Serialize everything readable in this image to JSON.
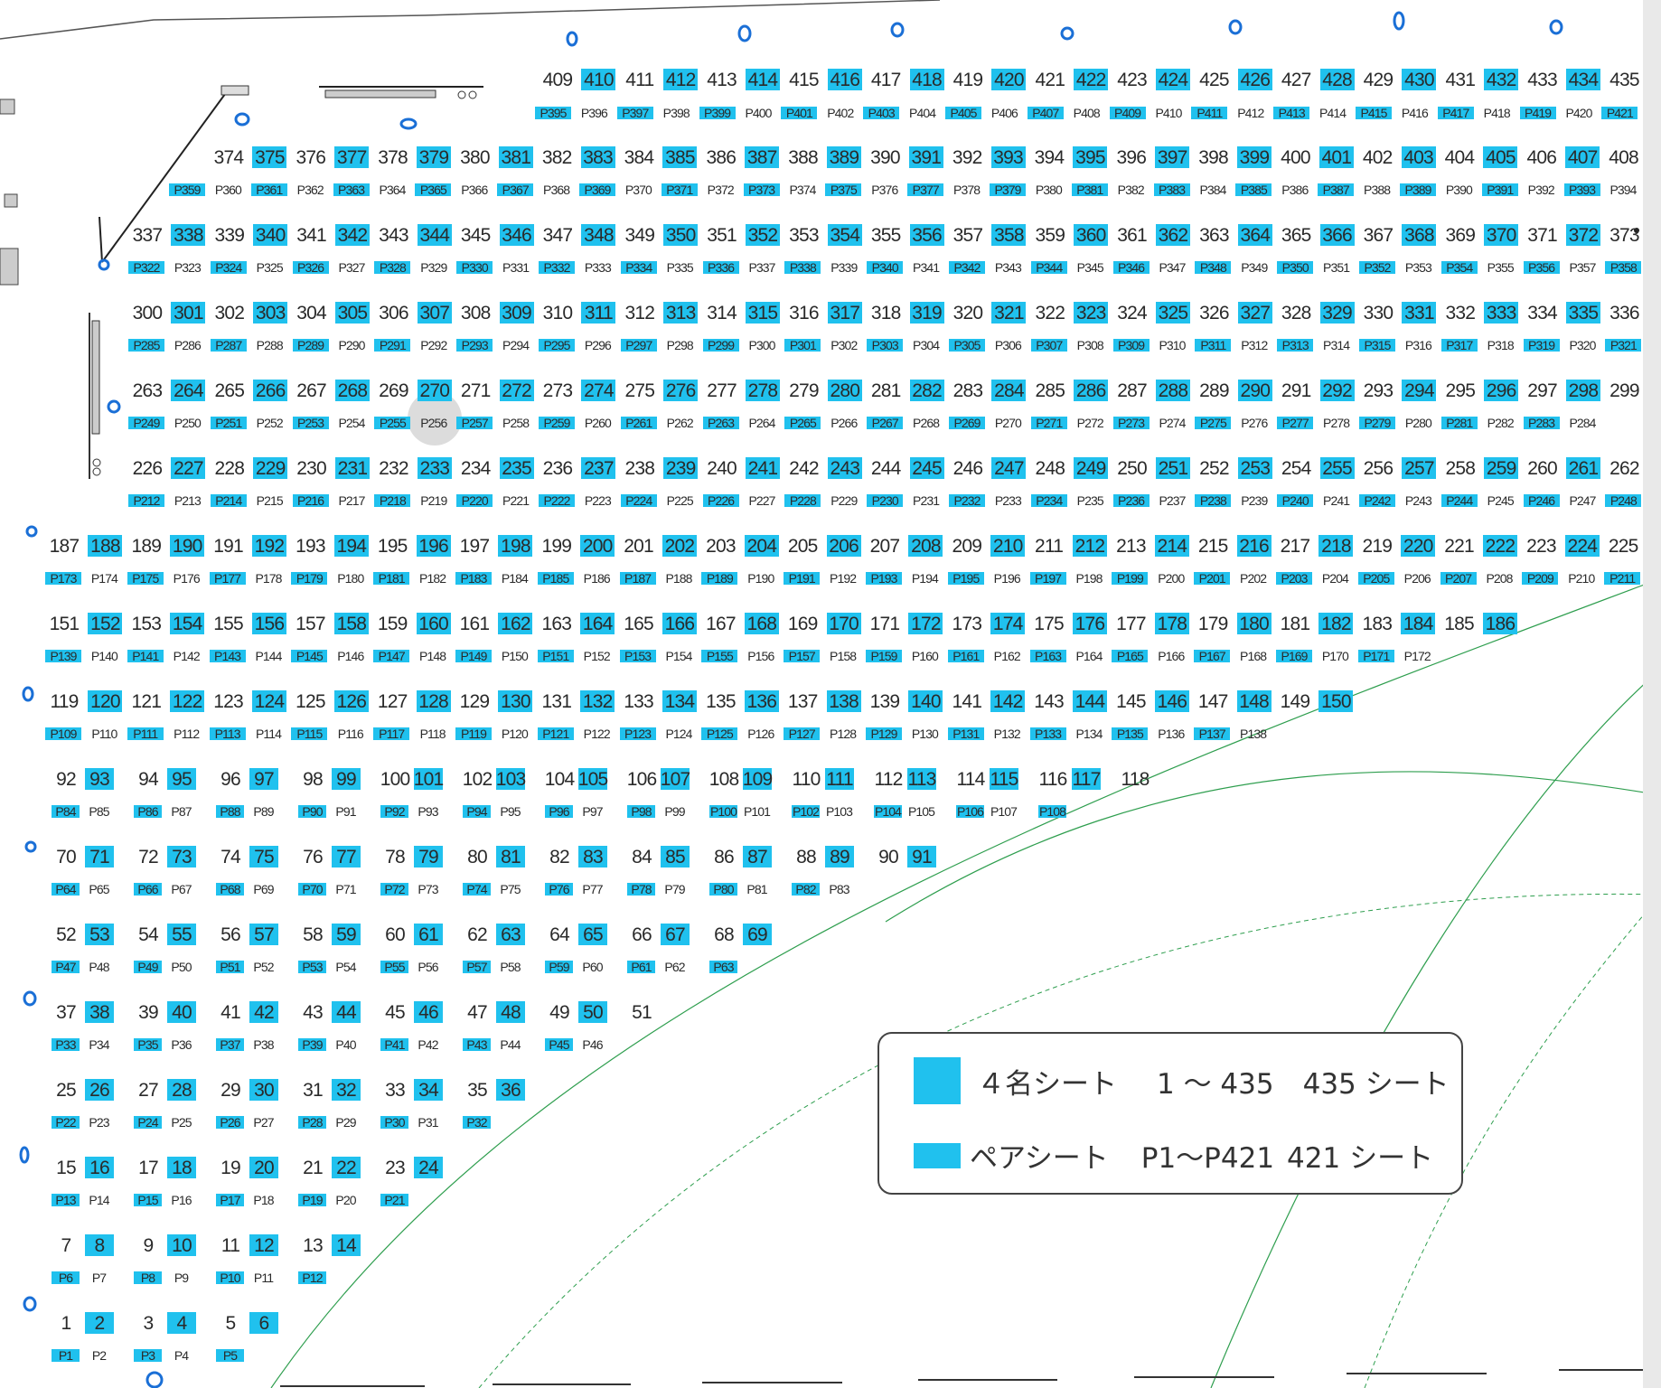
{
  "legend": {
    "four_seat": {
      "label": "４名シート",
      "range": "1 ～ 435",
      "count": "435 シート",
      "color": "#20c1ee"
    },
    "pair_seat": {
      "label": "ペアシート",
      "range": "P1～P421",
      "count": "421 シート",
      "color": "#20c1ee"
    }
  },
  "seating": {
    "four_seat_rows": [
      {
        "start": 409,
        "end": 435
      },
      {
        "start": 374,
        "end": 408
      },
      {
        "start": 337,
        "end": 373
      },
      {
        "start": 300,
        "end": 336
      },
      {
        "start": 263,
        "end": 299
      },
      {
        "start": 226,
        "end": 262
      },
      {
        "start": 187,
        "end": 225
      },
      {
        "start": 151,
        "end": 186
      },
      {
        "start": 119,
        "end": 150
      },
      {
        "start": 92,
        "end": 118
      },
      {
        "start": 70,
        "end": 91
      },
      {
        "start": 52,
        "end": 69
      },
      {
        "start": 37,
        "end": 51
      },
      {
        "start": 25,
        "end": 36
      },
      {
        "start": 15,
        "end": 24
      },
      {
        "start": 7,
        "end": 14
      },
      {
        "start": 1,
        "end": 6
      }
    ],
    "pair_seat_rows": [
      {
        "start": 395,
        "end": 421
      },
      {
        "start": 359,
        "end": 394
      },
      {
        "start": 322,
        "end": 358
      },
      {
        "start": 285,
        "end": 321
      },
      {
        "start": 249,
        "end": 284
      },
      {
        "start": 212,
        "end": 248
      },
      {
        "start": 173,
        "end": 211
      },
      {
        "start": 139,
        "end": 172
      },
      {
        "start": 109,
        "end": 138
      },
      {
        "start": 84,
        "end": 108
      },
      {
        "start": 64,
        "end": 83
      },
      {
        "start": 47,
        "end": 63
      },
      {
        "start": 33,
        "end": 46
      },
      {
        "start": 22,
        "end": 32
      },
      {
        "start": 13,
        "end": 21
      },
      {
        "start": 6,
        "end": 12
      },
      {
        "start": 1,
        "end": 5
      }
    ],
    "pair_prefix": "P"
  }
}
